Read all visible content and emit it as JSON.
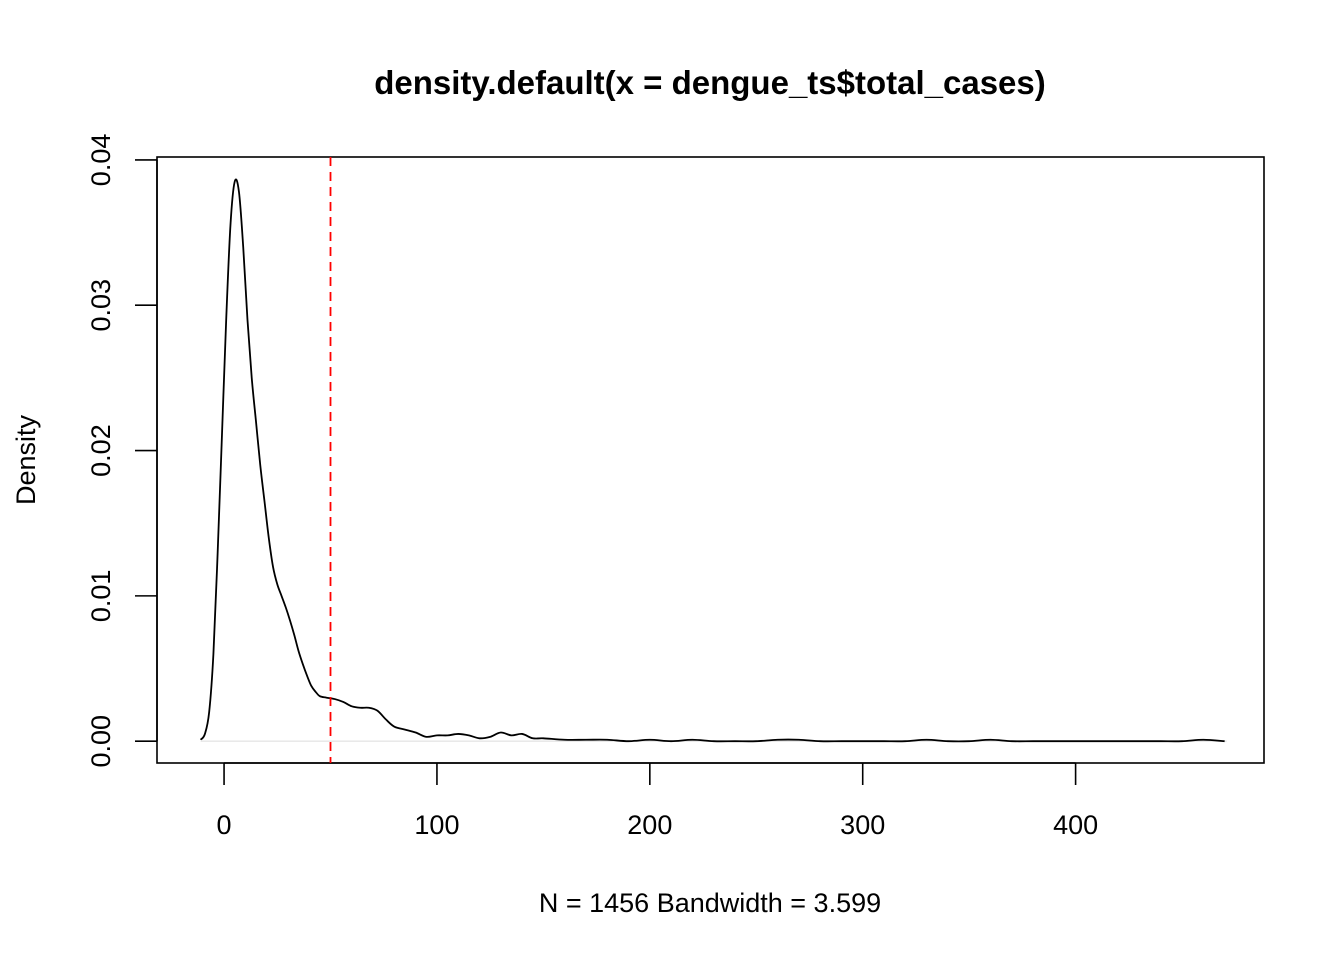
{
  "chart_data": {
    "type": "line",
    "title": "density.default(x = dengue_ts$total_cases)",
    "xlabel": "N = 1456   Bandwidth = 3.599",
    "ylabel": "Density",
    "xlim": [
      -31.5,
      488.5
    ],
    "ylim": [
      -0.0015,
      0.0402
    ],
    "x_ticks": [
      0,
      100,
      200,
      300,
      400
    ],
    "x_tick_labels": [
      "0",
      "100",
      "200",
      "300",
      "400"
    ],
    "y_ticks": [
      0.0,
      0.01,
      0.02,
      0.03,
      0.04
    ],
    "y_tick_labels": [
      "0.00",
      "0.01",
      "0.02",
      "0.03",
      "0.04"
    ],
    "grid": false,
    "reference_line": {
      "x": 50,
      "color": "#ff0000",
      "style": "dashed"
    },
    "baseline": {
      "y": 0,
      "color": "#e6e6e6"
    },
    "series": [
      {
        "color": "#000000",
        "x": [
          -11,
          -9,
          -7,
          -5,
          -3,
          -1,
          1,
          3,
          5,
          7,
          9,
          11,
          13,
          15,
          17,
          19,
          21,
          23,
          25,
          27,
          29,
          31,
          33,
          35,
          37,
          39,
          41,
          43,
          45,
          48,
          52,
          56,
          60,
          64,
          68,
          72,
          76,
          80,
          85,
          90,
          95,
          100,
          105,
          110,
          115,
          120,
          125,
          130,
          135,
          140,
          145,
          150,
          160,
          170,
          180,
          190,
          200,
          210,
          220,
          230,
          240,
          250,
          260,
          270,
          280,
          290,
          300,
          310,
          320,
          330,
          340,
          350,
          360,
          370,
          380,
          390,
          400,
          410,
          420,
          430,
          440,
          450,
          460,
          470
        ],
        "y": [
          0.0001,
          0.0005,
          0.002,
          0.006,
          0.013,
          0.021,
          0.029,
          0.0355,
          0.0385,
          0.0378,
          0.034,
          0.029,
          0.025,
          0.022,
          0.019,
          0.0165,
          0.014,
          0.012,
          0.0108,
          0.01,
          0.0092,
          0.0083,
          0.0073,
          0.0062,
          0.0053,
          0.0045,
          0.0038,
          0.0034,
          0.0031,
          0.003,
          0.0029,
          0.0027,
          0.0024,
          0.0023,
          0.0023,
          0.0021,
          0.0015,
          0.001,
          0.0008,
          0.0006,
          0.0003,
          0.0004,
          0.0004,
          0.0005,
          0.0004,
          0.0002,
          0.0003,
          0.0006,
          0.0004,
          0.0005,
          0.0002,
          0.0002,
          0.0001,
          0.0001,
          0.0001,
          0.0,
          0.0001,
          0.0,
          0.0001,
          0.0,
          0.0,
          0.0,
          0.0001,
          0.0001,
          0.0,
          0.0,
          0.0,
          0.0,
          0.0,
          0.0001,
          0.0,
          0.0,
          0.0001,
          0.0,
          0.0,
          0.0,
          0.0,
          0.0,
          0.0,
          0.0,
          0.0,
          0.0,
          0.0001,
          0.0
        ]
      }
    ]
  }
}
